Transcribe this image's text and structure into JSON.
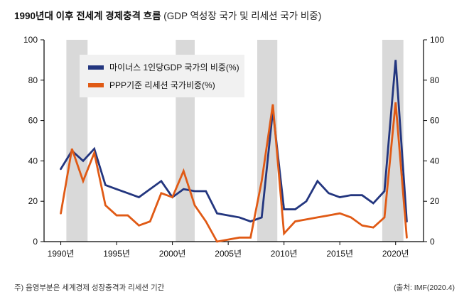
{
  "title": {
    "main": "1990년대 이후 전세계 경제충격 흐름",
    "sub": " (GDP 역성장 국가 및 리세션 국가 비중)"
  },
  "legend": {
    "items": [
      {
        "label": "마이너스 1인당GDP 국가의 비중(%)",
        "color": "#23367f"
      },
      {
        "label": "PPP기준 리세션 국가비중(%)",
        "color": "#e05a15"
      }
    ]
  },
  "footnote": "주) 음영부분은 세계경제 성장충격과 리세션 기간",
  "source": "(출처: IMF(2020.4)",
  "colors": {
    "navy": "#23367f",
    "orange": "#e05a15",
    "band": "#d9d9d9",
    "legend_bg": "#f1f1f1",
    "axis": "#000000"
  },
  "chart_data": {
    "type": "line",
    "title": "1990년대 이후 전세계 경제충격 흐름 (GDP 역성장 국가 및 리세션 국가 비중)",
    "xlabel": "",
    "ylabel": "%",
    "ylim": [
      0,
      100
    ],
    "yticks": [
      0,
      20,
      40,
      60,
      80,
      100
    ],
    "x_domain": [
      1988.5,
      2022.5
    ],
    "xtick_years": [
      1990,
      1995,
      2000,
      2005,
      2010,
      2015,
      2020
    ],
    "xtick_suffix": "년",
    "grid": false,
    "legend_position": "top-left",
    "x": [
      1990,
      1991,
      1992,
      1993,
      1994,
      1995,
      1996,
      1997,
      1998,
      1999,
      2000,
      2001,
      2002,
      2003,
      2004,
      2005,
      2006,
      2007,
      2008,
      2009,
      2010,
      2011,
      2012,
      2013,
      2014,
      2015,
      2016,
      2017,
      2018,
      2019,
      2020,
      2021
    ],
    "series": [
      {
        "name": "마이너스 1인당GDP 국가의 비중(%)",
        "color": "#23367f",
        "values": [
          36,
          45,
          40,
          46,
          28,
          26,
          24,
          22,
          26,
          30,
          22,
          26,
          25,
          25,
          14,
          13,
          12,
          10,
          12,
          65,
          16,
          16,
          20,
          30,
          24,
          22,
          23,
          23,
          19,
          25,
          90,
          10
        ]
      },
      {
        "name": "PPP기준 리세션 국가비중(%)",
        "color": "#e05a15",
        "values": [
          14,
          46,
          30,
          44,
          18,
          13,
          13,
          8,
          10,
          24,
          22,
          35,
          18,
          10,
          0,
          1,
          2,
          2,
          30,
          68,
          4,
          10,
          11,
          12,
          13,
          14,
          12,
          8,
          7,
          12,
          69,
          2
        ]
      }
    ],
    "shaded_bands": [
      [
        1990.5,
        1992.4
      ],
      [
        2000.3,
        2002.0
      ],
      [
        2007.6,
        2009.4
      ],
      [
        2018.8,
        2020.7
      ]
    ],
    "shaded_bands_meaning": "세계경제 성장충격과 리세션 기간"
  }
}
